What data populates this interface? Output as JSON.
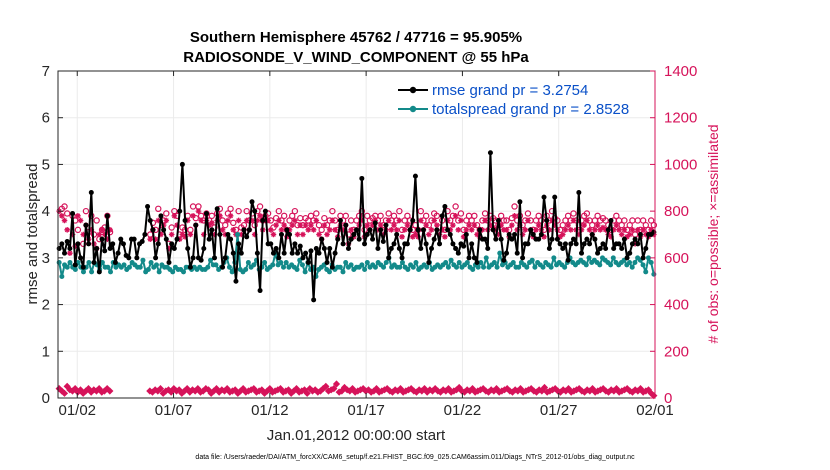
{
  "chart_data": {
    "type": "line",
    "title": "Southern Hemisphere 45762 / 47716 = 95.905%",
    "subtitle": "RADIOSONDE_V_WIND_COMPONENT @ 55 hPa",
    "xlabel": "Jan.01,2012 00:00:00 start",
    "ylabel_left": "rmse and totalspread",
    "ylabel_right": "# of obs: o=possible; ×=assimilated",
    "footnote": "data file: /Users/raeder/DAI/ATM_forcXX/CAM6_setup/f.e21.FHIST_BGC.f09_025.CAM6assim.011/Diags_NTrS_2012-01/obs_diag_output.nc",
    "x_range": [
      0,
      31.0
    ],
    "ylim_left": [
      0,
      7
    ],
    "ylim_right": [
      0,
      1400
    ],
    "x_ticks": [
      {
        "value": 1.0,
        "label": "01/02"
      },
      {
        "value": 6.0,
        "label": "01/07"
      },
      {
        "value": 11.0,
        "label": "01/12"
      },
      {
        "value": 16.0,
        "label": "01/17"
      },
      {
        "value": 21.0,
        "label": "01/22"
      },
      {
        "value": 26.0,
        "label": "01/27"
      },
      {
        "value": 31.0,
        "label": "02/01"
      }
    ],
    "y_ticks_left": [
      0,
      1,
      2,
      3,
      4,
      5,
      6,
      7
    ],
    "y_ticks_right": [
      0,
      200,
      400,
      600,
      800,
      1000,
      1200,
      1400
    ],
    "colors": {
      "rmse": "#000000",
      "spread": "#138a8a",
      "obs": "#d6135a",
      "axis": "#262626",
      "grid": "#ebebeb",
      "legend_text": "#0a50c8"
    },
    "series": [
      {
        "name": "rmse grand pr = 3.2754",
        "axis": "left",
        "values": [
          3.2,
          3.3,
          3.1,
          3.35,
          3.2,
          3.95,
          2.85,
          3.3,
          3.0,
          2.8,
          3.7,
          3.3,
          4.4,
          2.9,
          3.2,
          2.7,
          3.4,
          3.15,
          3.9,
          3.2,
          3.3,
          2.9,
          3.1,
          3.4,
          3.3,
          3.05,
          3.0,
          3.4,
          3.4,
          3.0,
          3.3,
          3.35,
          3.5,
          4.1,
          3.8,
          3.6,
          3.0,
          3.3,
          3.9,
          3.6,
          3.4,
          2.9,
          3.3,
          3.2,
          3.4,
          4.0,
          5.0,
          3.8,
          3.2,
          2.8,
          3.0,
          3.7,
          3.0,
          2.95,
          3.2,
          3.95,
          3.4,
          3.6,
          3.0,
          4.05,
          3.5,
          2.8,
          3.0,
          3.5,
          3.4,
          3.1,
          2.5,
          3.3,
          3.1,
          3.6,
          3.45,
          3.6,
          4.2,
          4.0,
          3.1,
          2.3,
          3.8,
          4.0,
          3.3,
          3.3,
          3.1,
          3.2,
          3.0,
          3.5,
          3.1,
          3.6,
          3.5,
          3.1,
          3.3,
          3.1,
          3.25,
          3.0,
          3.1,
          2.9,
          3.15,
          2.1,
          3.2,
          3.1,
          3.4,
          3.2,
          2.9,
          3.2,
          2.8,
          3.1,
          3.4,
          3.8,
          3.3,
          3.7,
          3.2,
          3.4,
          3.5,
          3.6,
          3.4,
          4.7,
          3.3,
          3.5,
          3.6,
          3.4,
          3.75,
          3.2,
          3.6,
          3.35,
          3.7,
          3.0,
          3.2,
          3.3,
          3.5,
          3.2,
          3.0,
          3.3,
          3.3,
          3.6,
          3.8,
          4.75,
          3.6,
          3.2,
          3.6,
          3.3,
          2.9,
          3.2,
          3.4,
          3.6,
          3.3,
          3.9,
          4.1,
          3.6,
          3.5,
          3.3,
          3.2,
          3.1,
          3.3,
          3.25,
          3.5,
          3.0,
          3.3,
          3.0,
          2.9,
          3.6,
          3.4,
          3.4,
          3.2,
          5.25,
          3.6,
          3.4,
          3.8,
          3.4,
          2.95,
          3.1,
          3.5,
          3.4,
          3.5,
          3.1,
          4.2,
          3.0,
          3.3,
          3.3,
          3.6,
          3.5,
          3.4,
          3.4,
          3.5,
          4.3,
          3.8,
          3.2,
          3.4,
          4.3,
          3.4,
          3.3,
          3.2,
          3.3,
          2.95,
          3.3,
          3.4,
          3.3,
          4.4,
          3.1,
          3.3,
          3.4,
          3.3,
          3.5,
          3.4,
          3.1,
          3.2,
          3.3,
          3.2,
          3.6,
          3.8,
          3.2,
          3.3,
          3.3,
          3.2,
          3.4,
          3.0,
          3.1,
          3.3,
          3.4,
          3.3,
          3.5,
          3.0,
          3.2,
          3.5,
          3.5,
          3.55
        ]
      },
      {
        "name": "totalspread grand pr = 2.8528",
        "axis": "left",
        "values": [
          2.9,
          2.6,
          2.85,
          2.8,
          2.9,
          2.8,
          2.75,
          2.9,
          2.8,
          2.7,
          2.8,
          2.9,
          2.7,
          2.9,
          2.85,
          2.75,
          2.9,
          2.8,
          2.8,
          2.7,
          2.9,
          2.8,
          2.85,
          2.8,
          2.85,
          2.75,
          2.8,
          2.9,
          2.85,
          2.8,
          2.8,
          2.95,
          2.7,
          2.75,
          2.9,
          2.8,
          2.85,
          2.7,
          2.85,
          2.8,
          2.8,
          2.75,
          2.7,
          2.8,
          2.75,
          2.75,
          2.7,
          2.8,
          2.8,
          2.75,
          2.8,
          2.75,
          2.8,
          2.75,
          2.75,
          2.8,
          2.95,
          2.85,
          2.85,
          2.75,
          2.8,
          2.9,
          3.0,
          2.8,
          2.7,
          2.9,
          3.5,
          2.75,
          2.7,
          2.75,
          2.9,
          2.8,
          2.85,
          2.95,
          2.75,
          2.8,
          2.9,
          2.75,
          2.8,
          2.85,
          3.1,
          2.85,
          2.9,
          2.8,
          2.9,
          2.8,
          2.85,
          2.8,
          2.75,
          2.95,
          2.85,
          2.7,
          2.9,
          2.75,
          2.8,
          2.6,
          2.75,
          2.8,
          2.85,
          2.75,
          2.7,
          2.85,
          2.75,
          2.8,
          2.8,
          2.7,
          2.9,
          2.8,
          2.85,
          2.75,
          2.8,
          2.8,
          2.85,
          2.75,
          2.9,
          2.8,
          2.85,
          2.8,
          2.9,
          2.85,
          2.8,
          2.9,
          3.0,
          2.8,
          2.85,
          2.8,
          2.8,
          2.9,
          2.8,
          2.75,
          2.85,
          2.8,
          2.9,
          2.75,
          2.8,
          2.85,
          2.8,
          2.9,
          2.75,
          2.8,
          2.85,
          2.8,
          2.85,
          2.9,
          2.8,
          2.95,
          2.85,
          2.8,
          2.9,
          2.8,
          2.85,
          2.9,
          2.8,
          2.75,
          2.85,
          2.8,
          2.9,
          2.8,
          3.0,
          2.8,
          2.85,
          2.9,
          2.8,
          3.1,
          2.85,
          2.9,
          2.8,
          2.85,
          2.9,
          2.8,
          2.8,
          2.9,
          2.85,
          2.8,
          2.9,
          2.95,
          2.8,
          2.9,
          2.85,
          2.8,
          2.9,
          2.85,
          2.8,
          3.0,
          2.85,
          2.9,
          2.85,
          2.8,
          2.9,
          3.0,
          2.9,
          2.85,
          2.9,
          2.95,
          2.9,
          2.85,
          3.0,
          2.9,
          2.95,
          2.9,
          2.85,
          3.0,
          2.95,
          2.9,
          2.85,
          3.0,
          2.9,
          2.85,
          2.9,
          2.95,
          2.85,
          2.9,
          2.8,
          2.9,
          3.0,
          2.95,
          2.85,
          2.7,
          3.0,
          2.9,
          2.65
        ]
      },
      {
        "name": "possible",
        "axis": "right",
        "marker": "o",
        "values": [
          null,
          810,
          820,
          790,
          null,
          780,
          760,
          720,
          null,
          660,
          800,
          710,
          780,
          700,
          760,
          680,
          720,
          730,
          780,
          710,
          null,
          null,
          null,
          null,
          null,
          null,
          null,
          null,
          null,
          null,
          null,
          null,
          null,
          null,
          700,
          750,
          720,
          810,
          720,
          760,
          790,
          660,
          730,
          800,
          780,
          700,
          730,
          720,
          780,
          720,
          820,
          770,
          820,
          780,
          760,
          790,
          760,
          780,
          730,
          790,
          810,
          760,
          740,
          790,
          810,
          750,
          720,
          800,
          730,
          740,
          800,
          760,
          790,
          740,
          800,
          820,
          760,
          780,
          790,
          760,
          730,
          770,
          800,
          760,
          780,
          720,
          760,
          780,
          800,
          740,
          770,
          740,
          770,
          760,
          780,
          760,
          790,
          740,
          720,
          770,
          740,
          760,
          800,
          760,
          720,
          780,
          760,
          780,
          700,
          760,
          720,
          760,
          780,
          800,
          720,
          780,
          760,
          770,
          780,
          760,
          780,
          740,
          760,
          790,
          760,
          780,
          760,
          800,
          720,
          760,
          780,
          760,
          720,
          740,
          720,
          800,
          760,
          780,
          740,
          760,
          790,
          780,
          730,
          760,
          720,
          800,
          760,
          780,
          820,
          760,
          790,
          720,
          760,
          780,
          760,
          780,
          740,
          720,
          760,
          790,
          760,
          780,
          770,
          760,
          740,
          780,
          760,
          760,
          720,
          770,
          820,
          760,
          780,
          740,
          760,
          790,
          760,
          720,
          760,
          780,
          760,
          720,
          780,
          760,
          800,
          770,
          760,
          720,
          740,
          760,
          780,
          760,
          790,
          760,
          740,
          760,
          780,
          790,
          760,
          740,
          760,
          780,
          760,
          770,
          760,
          740,
          720,
          760,
          780,
          760,
          740,
          760,
          720,
          740,
          760,
          700,
          760,
          720,
          760,
          740,
          720,
          760,
          740
        ]
      },
      {
        "name": "assimilated",
        "axis": "right",
        "marker": "x",
        "values": [
          800,
          780,
          760,
          720,
          620,
          700,
          650,
          780,
          760,
          700,
          740,
          680,
          720,
          660,
          640,
          700,
          720,
          700,
          680,
          720,
          null,
          null,
          null,
          null,
          null,
          null,
          null,
          null,
          null,
          null,
          null,
          null,
          null,
          null,
          680,
          720,
          680,
          760,
          700,
          740,
          760,
          640,
          700,
          780,
          740,
          680,
          700,
          690,
          760,
          700,
          780,
          740,
          800,
          760,
          700,
          760,
          740,
          750,
          700,
          760,
          780,
          720,
          700,
          760,
          780,
          720,
          700,
          760,
          700,
          720,
          760,
          720,
          760,
          700,
          760,
          780,
          720,
          760,
          760,
          720,
          700,
          740,
          760,
          720,
          740,
          690,
          720,
          740,
          760,
          700,
          740,
          700,
          740,
          720,
          740,
          720,
          760,
          700,
          680,
          740,
          700,
          720,
          760,
          720,
          690,
          740,
          720,
          740,
          660,
          720,
          690,
          720,
          740,
          760,
          690,
          740,
          720,
          740,
          760,
          720,
          740,
          700,
          720,
          760,
          720,
          740,
          720,
          760,
          690,
          720,
          740,
          720,
          690,
          700,
          690,
          760,
          720,
          740,
          700,
          720,
          760,
          740,
          700,
          720,
          690,
          760,
          720,
          740,
          780,
          720,
          760,
          690,
          720,
          740,
          720,
          740,
          700,
          690,
          720,
          760,
          720,
          740,
          730,
          720,
          700,
          740,
          720,
          720,
          690,
          740,
          780,
          720,
          740,
          700,
          720,
          760,
          720,
          690,
          720,
          740,
          720,
          690,
          740,
          720,
          760,
          740,
          720,
          690,
          700,
          720,
          740,
          720,
          760,
          720,
          700,
          720,
          740,
          760,
          720,
          700,
          720,
          740,
          720,
          730,
          720,
          700,
          690,
          720,
          740,
          720,
          700,
          720,
          690,
          700,
          720,
          660,
          720,
          690,
          720,
          700,
          690,
          720,
          700
        ]
      },
      {
        "name": "possible_minus_assimilated",
        "axis": "right",
        "marker": "filled-diamond",
        "values": [
          40,
          30,
          20,
          50,
          35,
          30,
          40,
          25,
          35,
          20,
          30,
          40,
          25,
          35,
          30,
          40,
          25,
          30,
          40,
          30,
          null,
          null,
          null,
          null,
          null,
          null,
          null,
          null,
          null,
          null,
          null,
          null,
          null,
          null,
          30,
          25,
          35,
          30,
          40,
          20,
          30,
          35,
          25,
          40,
          30,
          35,
          20,
          30,
          40,
          25,
          35,
          30,
          40,
          25,
          30,
          40,
          35,
          20,
          30,
          40,
          25,
          35,
          30,
          40,
          25,
          30,
          35,
          20,
          30,
          40,
          25,
          30,
          35,
          40,
          25,
          30,
          35,
          20,
          30,
          40,
          25,
          30,
          35,
          40,
          25,
          30,
          35,
          20,
          30,
          40,
          25,
          30,
          35,
          20,
          40,
          30,
          35,
          25,
          30,
          40,
          50,
          30,
          35,
          40,
          60,
          25,
          30,
          45,
          35,
          30,
          40,
          25,
          30,
          35,
          40,
          30,
          35,
          25,
          30,
          40,
          25,
          30,
          35,
          40,
          30,
          25,
          35,
          30,
          40,
          25,
          30,
          35,
          40,
          30,
          25,
          35,
          30,
          40,
          25,
          35,
          30,
          40,
          30,
          25,
          35,
          30,
          40,
          25,
          30,
          35,
          45,
          30,
          25,
          35,
          30,
          40,
          25,
          30,
          35,
          40,
          30,
          25,
          35,
          30,
          40,
          25,
          30,
          35,
          40,
          30,
          25,
          35,
          30,
          40,
          25,
          30,
          35,
          40,
          30,
          25,
          35,
          30,
          45,
          25,
          30,
          35,
          40,
          30,
          25,
          35,
          30,
          40,
          25,
          30,
          35,
          40,
          30,
          25,
          35,
          30,
          40,
          25,
          30,
          35,
          40,
          30,
          25,
          35,
          30,
          40,
          25,
          30,
          35,
          40,
          30,
          25,
          35,
          30,
          40,
          25,
          30,
          35,
          20,
          10
        ]
      }
    ]
  }
}
